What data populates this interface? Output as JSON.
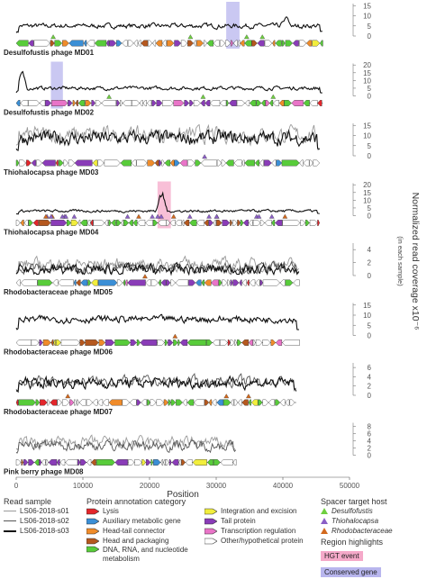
{
  "chart_data": {
    "type": "line",
    "xlabel": "Position",
    "ylabel": "Normalized read coverage x10⁻⁶",
    "ylabel_sub": "(in each sample)",
    "x_ticks": [
      "0",
      "10000",
      "20000",
      "30000",
      "40000",
      "50000"
    ],
    "xlim": [
      0,
      50000
    ],
    "panels": [
      {
        "name": "Desulfofustis phage MD01",
        "length": 46000,
        "yticks": [
          "0",
          "5",
          "10",
          "15"
        ],
        "ymax": 16,
        "base": 5,
        "amp": 2,
        "peak_x": 40500,
        "peak_y": 10,
        "highlight": {
          "type": "conserved",
          "start": 31500,
          "end": 33500
        },
        "series": [
          "s03"
        ]
      },
      {
        "name": "Desulfofustis phage MD02",
        "length": 46000,
        "yticks": [
          "0",
          "5",
          "10",
          "15",
          "20"
        ],
        "ymax": 21,
        "base": 5,
        "amp": 2,
        "peak_x": 800,
        "peak_y": 18,
        "highlight": {
          "type": "conserved",
          "start": 5200,
          "end": 7000
        },
        "series": [
          "s03"
        ]
      },
      {
        "name": "Thiohalocapsa phage MD03",
        "length": 45500,
        "yticks": [
          "0",
          "5",
          "10",
          "15"
        ],
        "ymax": 16,
        "base": 9,
        "amp": 6,
        "series": [
          "s01",
          "s03"
        ]
      },
      {
        "name": "Thiohalocapsa phage MD04",
        "length": 45500,
        "yticks": [
          "0",
          "5",
          "10",
          "15",
          "20"
        ],
        "ymax": 21,
        "base": 3,
        "amp": 1.5,
        "peak_x": 21800,
        "peak_y": 18,
        "highlight": {
          "type": "hgt",
          "start": 21200,
          "end": 23200
        },
        "series": [
          "s03"
        ]
      },
      {
        "name": "Rhodobacteraceae phage MD05",
        "length": 42500,
        "yticks": [
          "0",
          "2",
          "4"
        ],
        "ymax": 5,
        "base": 1.5,
        "amp": 1.4,
        "series": [
          "s01",
          "s02",
          "s03"
        ]
      },
      {
        "name": "Rhodobacteraceae phage MD06",
        "length": 42500,
        "yticks": [
          "0",
          "5",
          "10",
          "15"
        ],
        "ymax": 16,
        "base": 8,
        "amp": 3,
        "series": [
          "s03"
        ]
      },
      {
        "name": "Rhodobacteraceae phage MD07",
        "length": 42000,
        "yticks": [
          "0",
          "2",
          "4",
          "6"
        ],
        "ymax": 7,
        "base": 3,
        "amp": 2,
        "series": [
          "s02",
          "s03"
        ]
      },
      {
        "name": "Pink berry phage MD08",
        "length": 33000,
        "yticks": [
          "0",
          "2",
          "4",
          "6",
          "8"
        ],
        "ymax": 9,
        "base": 3,
        "amp": 2.5,
        "series": [
          "s01",
          "s02"
        ]
      }
    ],
    "read_samples": [
      {
        "name": "LS06-2018-s01",
        "color": "#9a9a9a"
      },
      {
        "name": "LS06-2018-s02",
        "color": "#555555"
      },
      {
        "name": "LS06-2018-s03",
        "color": "#111111"
      }
    ],
    "protein_categories": [
      {
        "label": "Lysis",
        "color": "#e3262b"
      },
      {
        "label": "Auxiliary metabolic gene",
        "color": "#3b8fd6"
      },
      {
        "label": "Head-tail connector",
        "color": "#f08c2a"
      },
      {
        "label": "Head and packaging",
        "color": "#b5581e"
      },
      {
        "label": "DNA, RNA, and nucleotide metabolism",
        "color": "#58cc3a"
      },
      {
        "label": "Integration and excision",
        "color": "#f2ee3c"
      },
      {
        "label": "Tail protein",
        "color": "#8a3cb8"
      },
      {
        "label": "Transcription regulation",
        "color": "#e974c8"
      },
      {
        "label": "Other/hypothetical protein",
        "color": "#ffffff"
      }
    ],
    "spacer_hosts": [
      {
        "label": "Desulfofustis",
        "color": "#6fcf40"
      },
      {
        "label": "Thiohalocapsa",
        "color": "#8b5fc6"
      },
      {
        "label": "Rhodobacteraceae",
        "color": "#d2691e"
      }
    ],
    "region_highlights": [
      {
        "label": "HGT event",
        "color": "#f5a9c9"
      },
      {
        "label": "Conserved gene",
        "color": "#b8b6ee"
      }
    ]
  },
  "legend_titles": {
    "read_sample": "Read sample",
    "protein": "Protein annotation category",
    "spacer": "Spacer target host",
    "region": "Region highlights"
  }
}
